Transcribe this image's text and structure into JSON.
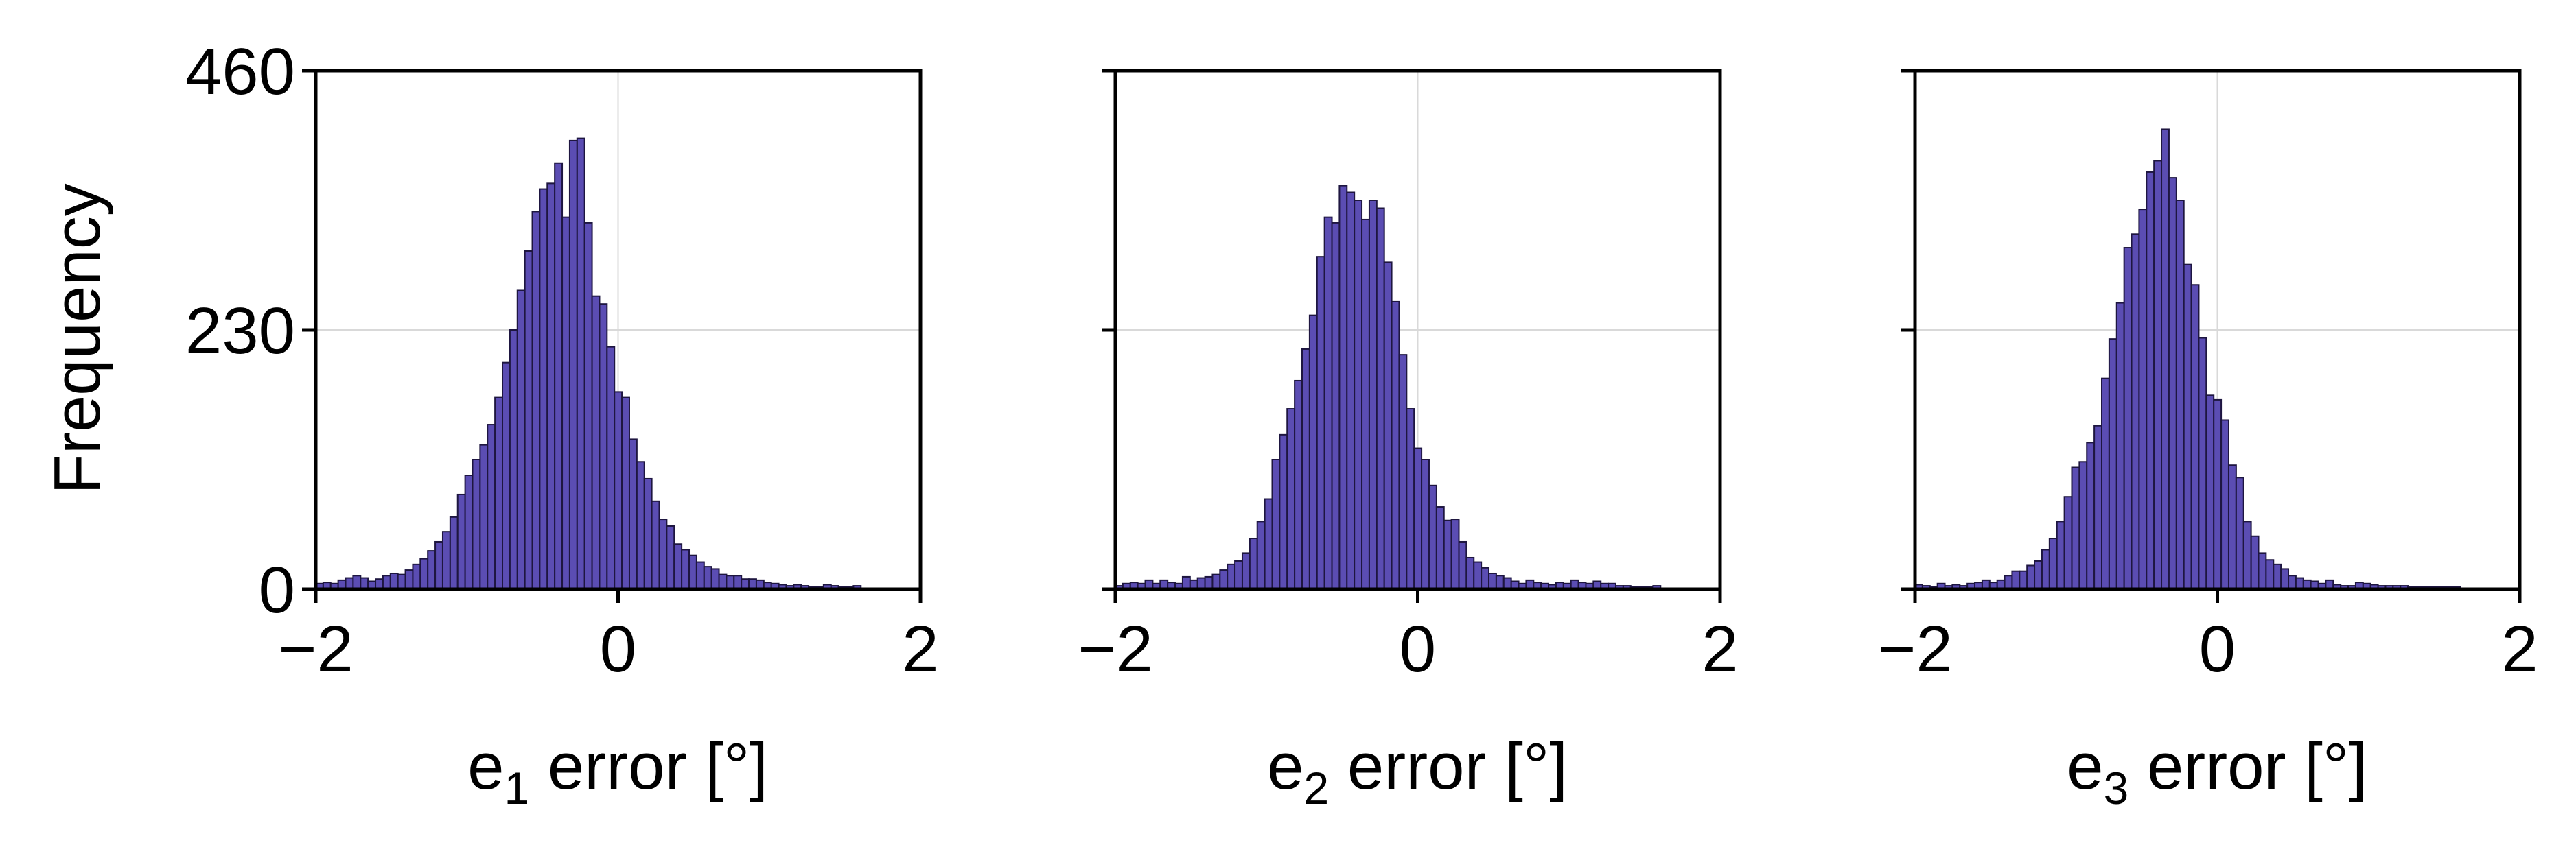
{
  "colors": {
    "bar_fill": "#5b4db3",
    "bar_edge": "#1e1640",
    "grid": "#d9d9d9",
    "frame": "#000000"
  },
  "chart_data": [
    {
      "type": "bar",
      "histogram": true,
      "ylabel": "Frequency",
      "xlabel_base": "e",
      "xlabel_subscript": "1",
      "xlabel_suffix": " error [°]",
      "xlim": [
        -2,
        2
      ],
      "ylim": [
        0,
        460
      ],
      "xticks": [
        {
          "value": -2,
          "label": "−2"
        },
        {
          "value": 0,
          "label": "0"
        },
        {
          "value": 2,
          "label": "2"
        }
      ],
      "yticks": [
        {
          "value": 0,
          "label": "0"
        },
        {
          "value": 230,
          "label": "230"
        },
        {
          "value": 460,
          "label": "460"
        }
      ],
      "grid": true,
      "bin_start": -2,
      "bin_width": 0.0494,
      "values": [
        5,
        6,
        5,
        8,
        10,
        12,
        10,
        7,
        9,
        12,
        14,
        13,
        17,
        22,
        27,
        34,
        42,
        51,
        64,
        84,
        101,
        115,
        128,
        146,
        170,
        201,
        230,
        265,
        300,
        335,
        355,
        360,
        378,
        330,
        398,
        400,
        325,
        260,
        253,
        215,
        175,
        170,
        133,
        113,
        98,
        78,
        62,
        56,
        40,
        35,
        30,
        24,
        20,
        18,
        13,
        12,
        12,
        9,
        9,
        8,
        6,
        5,
        4,
        3,
        4,
        3,
        2,
        2,
        4,
        3,
        2,
        2,
        3
      ]
    },
    {
      "type": "bar",
      "histogram": true,
      "xlabel_base": "e",
      "xlabel_subscript": "2",
      "xlabel_suffix": " error [°]",
      "xlim": [
        -2,
        2
      ],
      "ylim": [
        0,
        460
      ],
      "xticks": [
        {
          "value": -2,
          "label": "−2"
        },
        {
          "value": 0,
          "label": "0"
        },
        {
          "value": 2,
          "label": "2"
        }
      ],
      "yticks": [
        {
          "value": 0,
          "label": ""
        },
        {
          "value": 230,
          "label": ""
        },
        {
          "value": 460,
          "label": ""
        }
      ],
      "grid": true,
      "bin_start": -2,
      "bin_width": 0.0494,
      "values": [
        3,
        5,
        6,
        5,
        8,
        5,
        8,
        6,
        5,
        11,
        8,
        10,
        11,
        13,
        17,
        22,
        25,
        32,
        45,
        60,
        80,
        115,
        137,
        160,
        185,
        213,
        243,
        295,
        330,
        325,
        358,
        352,
        345,
        328,
        345,
        338,
        290,
        255,
        208,
        160,
        125,
        115,
        92,
        73,
        61,
        62,
        42,
        28,
        24,
        19,
        14,
        12,
        10,
        7,
        5,
        8,
        6,
        5,
        4,
        6,
        5,
        8,
        6,
        5,
        7,
        5,
        5,
        3,
        3,
        2,
        2,
        2,
        3
      ]
    },
    {
      "type": "bar",
      "histogram": true,
      "xlabel_base": "e",
      "xlabel_subscript": "3",
      "xlabel_suffix": " error [°]",
      "xlim": [
        -2,
        2
      ],
      "ylim": [
        0,
        460
      ],
      "xticks": [
        {
          "value": -2,
          "label": "−2"
        },
        {
          "value": 0,
          "label": "0"
        },
        {
          "value": 2,
          "label": "2"
        }
      ],
      "yticks": [
        {
          "value": 0,
          "label": ""
        },
        {
          "value": 230,
          "label": ""
        },
        {
          "value": 460,
          "label": ""
        }
      ],
      "grid": true,
      "bin_start": -2,
      "bin_width": 0.0494,
      "values": [
        4,
        3,
        2,
        5,
        3,
        4,
        3,
        5,
        6,
        8,
        6,
        8,
        12,
        16,
        16,
        21,
        25,
        35,
        45,
        60,
        82,
        108,
        113,
        130,
        145,
        187,
        222,
        254,
        303,
        315,
        337,
        370,
        380,
        408,
        365,
        345,
        288,
        270,
        223,
        172,
        168,
        150,
        110,
        99,
        60,
        47,
        32,
        26,
        22,
        18,
        12,
        10,
        8,
        7,
        5,
        8,
        4,
        3,
        3,
        6,
        5,
        4,
        3,
        3,
        3,
        3,
        2,
        2,
        2,
        2,
        2,
        2,
        2
      ]
    }
  ]
}
